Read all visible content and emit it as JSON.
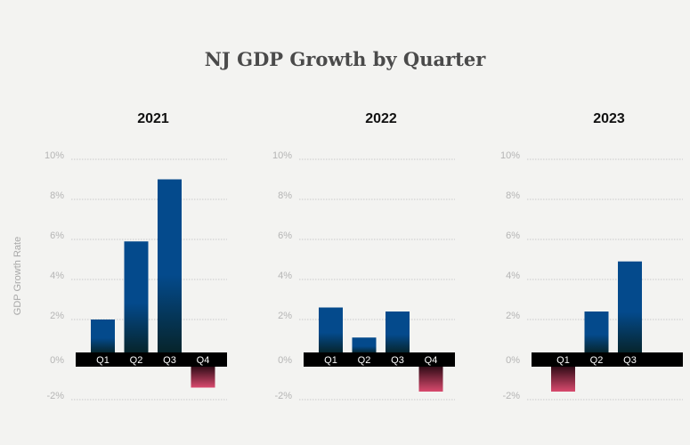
{
  "chart_data": [
    {
      "type": "bar",
      "title": "2021",
      "categories": [
        "Q1",
        "Q2",
        "Q3",
        "Q4"
      ],
      "values": [
        2.0,
        5.9,
        9.0,
        -1.4
      ],
      "ylim": [
        -2,
        10
      ],
      "yticks": [
        "10%",
        "8%",
        "6%",
        "4%",
        "2%",
        "0%",
        "-2%"
      ],
      "grid": true
    },
    {
      "type": "bar",
      "title": "2022",
      "categories": [
        "Q1",
        "Q2",
        "Q3",
        "Q4"
      ],
      "values": [
        2.6,
        1.1,
        2.4,
        -1.6
      ],
      "ylim": [
        -2,
        10
      ],
      "yticks": [
        "10%",
        "8%",
        "6%",
        "4%",
        "2%",
        "0%",
        "-2%"
      ],
      "grid": true
    },
    {
      "type": "bar",
      "title": "2023",
      "categories": [
        "Q1",
        "Q2",
        "Q3"
      ],
      "values": [
        -1.6,
        2.4,
        4.9
      ],
      "ylim": [
        -2,
        10
      ],
      "yticks": [
        "10%",
        "8%",
        "6%",
        "4%",
        "2%",
        "0%",
        "-2%"
      ],
      "grid": true
    }
  ],
  "title": "NJ GDP Growth by Quarter",
  "ylabel": "GDP Growth Rate",
  "colors": {
    "positive_top": "#044a8c",
    "positive_bottom": "#06242a",
    "negative_top": "#2a0a14",
    "negative_bottom": "#d94a6e",
    "zero_band": "#000000",
    "grid": "#bdbdbd",
    "tick_text": "#b5b5b5"
  }
}
